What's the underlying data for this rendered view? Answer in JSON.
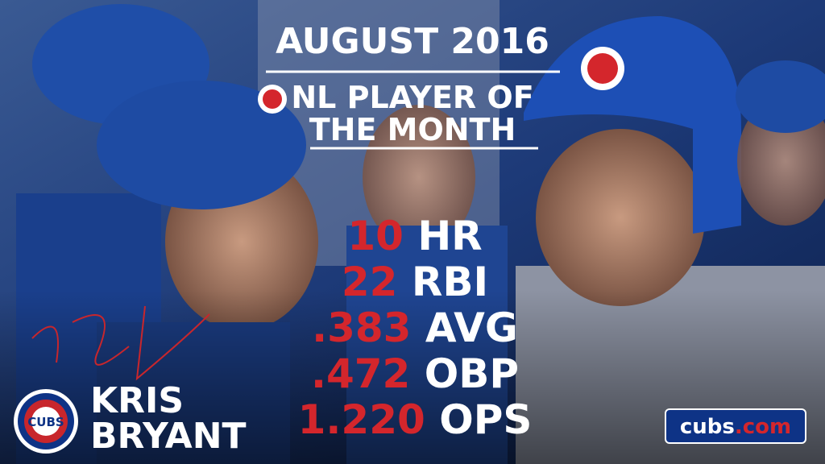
{
  "header": {
    "title": "AUGUST 2016",
    "subtitle_lines": [
      "NL PLAYER OF",
      "THE MONTH"
    ]
  },
  "stats": [
    {
      "value": "10",
      "label": "HR"
    },
    {
      "value": "22",
      "label": "RBI"
    },
    {
      "value": ".383",
      "label": "AVG"
    },
    {
      "value": ".472",
      "label": "OBP"
    },
    {
      "value": "1.220",
      "label": "OPS"
    }
  ],
  "player": {
    "first_name": "KRIS",
    "last_name": "BRYANT"
  },
  "logo": {
    "text": "CUBS"
  },
  "website": {
    "name": "cubs",
    "domain": ".com"
  }
}
